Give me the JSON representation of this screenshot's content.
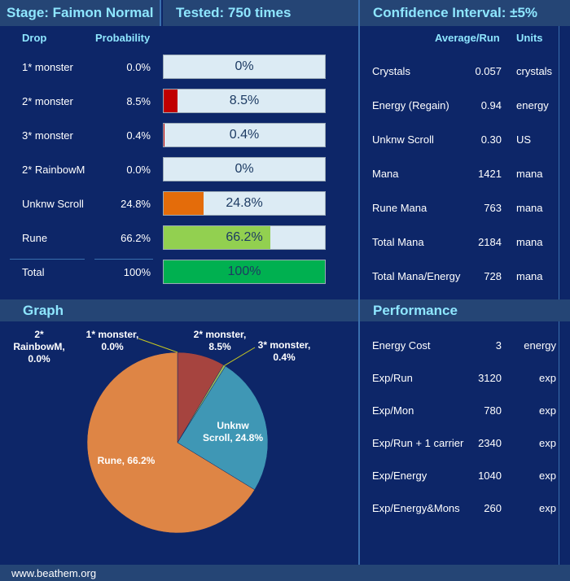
{
  "header": {
    "stage": "Stage: Faimon Normal",
    "tested": "Tested: 750 times",
    "confidence": "Confidence Interval: ±5%"
  },
  "drops": {
    "col_drop": "Drop",
    "col_probability": "Probability",
    "rows": [
      {
        "label": "1* monster",
        "prob": "0.0%",
        "value": 0.0,
        "bar_label": "0%",
        "color": "#c00000"
      },
      {
        "label": "2* monster",
        "prob": "8.5%",
        "value": 8.5,
        "bar_label": "8.5%",
        "color": "#c00000"
      },
      {
        "label": "3* monster",
        "prob": "0.4%",
        "value": 0.4,
        "bar_label": "0.4%",
        "color": "#c00000"
      },
      {
        "label": "2* RainbowM",
        "prob": "0.0%",
        "value": 0.0,
        "bar_label": "0%",
        "color": "#c00000"
      },
      {
        "label": "Unknw Scroll",
        "prob": "24.8%",
        "value": 24.8,
        "bar_label": "24.8%",
        "color": "#e46c0a"
      },
      {
        "label": "Rune",
        "prob": "66.2%",
        "value": 66.2,
        "bar_label": "66.2%",
        "color": "#92d050"
      }
    ],
    "total": {
      "label": "Total",
      "prob": "100%",
      "value": 100,
      "bar_label": "100%",
      "color": "#00b050"
    }
  },
  "average": {
    "col_avg": "Average/Run",
    "col_units": "Units",
    "rows": [
      {
        "label": "Crystals",
        "value": "0.057",
        "unit": "crystals"
      },
      {
        "label": "Energy (Regain)",
        "value": "0.94",
        "unit": "energy"
      },
      {
        "label": "Unknw Scroll",
        "value": "0.30",
        "unit": "US"
      },
      {
        "label": "Mana",
        "value": "1421",
        "unit": "mana"
      },
      {
        "label": "Rune Mana",
        "value": "763",
        "unit": "mana"
      },
      {
        "label": "Total Mana",
        "value": "2184",
        "unit": "mana"
      },
      {
        "label": "Total Mana/Energy",
        "value": "728",
        "unit": "mana"
      }
    ]
  },
  "graph": {
    "title": "Graph"
  },
  "performance": {
    "title": "Performance",
    "rows": [
      {
        "label": "Energy Cost",
        "value": "3",
        "unit": "energy"
      },
      {
        "label": "Exp/Run",
        "value": "3120",
        "unit": "exp"
      },
      {
        "label": "Exp/Mon",
        "value": "780",
        "unit": "exp"
      },
      {
        "label": "Exp/Run + 1 carrier",
        "value": "2340",
        "unit": "exp"
      },
      {
        "label": "Exp/Energy",
        "value": "1040",
        "unit": "exp"
      },
      {
        "label": "Exp/Energy&Mons",
        "value": "260",
        "unit": "exp"
      }
    ]
  },
  "footer": {
    "site": "www.beathem.org"
  },
  "chart_data": {
    "type": "pie",
    "title": "",
    "slices": [
      {
        "label": "1* monster",
        "value": 0.0,
        "label_text": "1* monster,\n0.0%",
        "color": "#c0504d"
      },
      {
        "label": "2* monster",
        "value": 8.5,
        "label_text": "2* monster,\n8.5%",
        "color": "#a6443f"
      },
      {
        "label": "3* monster",
        "value": 0.4,
        "label_text": "3* monster,\n0.4%",
        "color": "#9bbb59"
      },
      {
        "label": "2* RainbowM",
        "value": 0.0,
        "label_text": "2*\nRainbowM,\n0.0%",
        "color": "#8064a2"
      },
      {
        "label": "Unknw Scroll",
        "value": 24.8,
        "label_text": "Unknw\nScroll, 24.8%",
        "color": "#3f97b5"
      },
      {
        "label": "Rune",
        "value": 66.2,
        "label_text": "Rune, 66.2%",
        "color": "#de8545"
      }
    ]
  }
}
